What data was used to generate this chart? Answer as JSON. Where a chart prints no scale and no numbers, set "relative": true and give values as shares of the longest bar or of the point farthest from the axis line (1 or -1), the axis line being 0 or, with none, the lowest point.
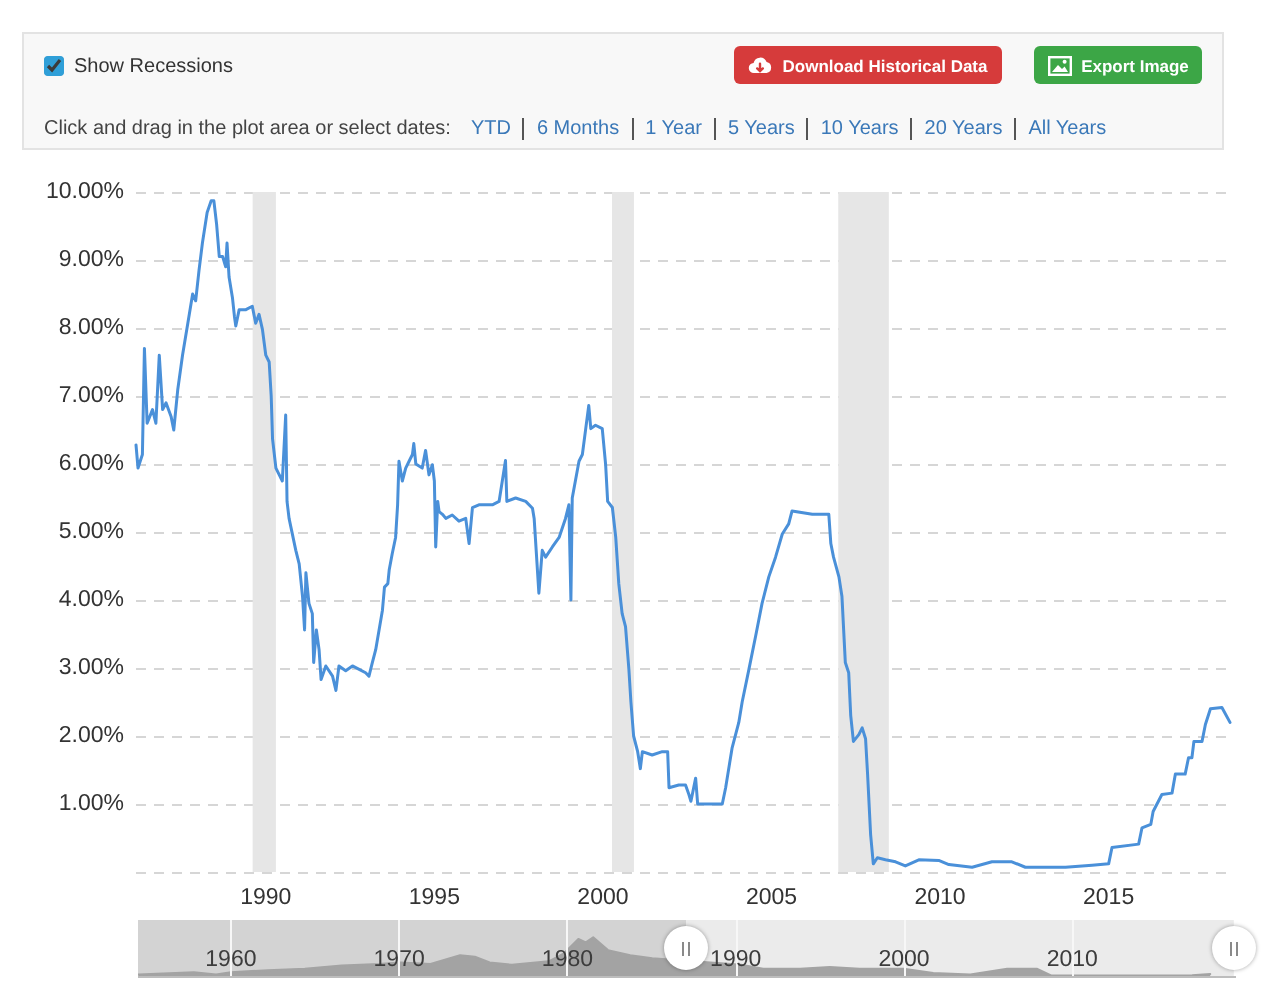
{
  "chart_data": [
    {
      "type": "line",
      "annotations": [
        "Show Recessions",
        "Download Historical Data",
        "Export Image",
        "Click and drag in the plot area or select dates:",
        "YTD",
        "6 Months",
        "1 Year",
        "5 Years",
        "10 Years",
        "20 Years",
        "All Years"
      ],
      "x": [
        1986.15,
        1986.21,
        1986.34,
        1986.4,
        1986.48,
        1986.64,
        1986.74,
        1986.84,
        1986.94,
        1987.04,
        1987.19,
        1987.27,
        1987.39,
        1987.53,
        1987.73,
        1987.83,
        1987.92,
        1988.02,
        1988.12,
        1988.26,
        1988.38,
        1988.46,
        1988.54,
        1988.62,
        1988.72,
        1988.81,
        1988.85,
        1988.91,
        1989.01,
        1989.07,
        1989.11,
        1989.21,
        1989.41,
        1989.6,
        1989.7,
        1989.8,
        1989.9,
        1990.0,
        1990.1,
        1990.16,
        1990.2,
        1990.3,
        1990.4,
        1990.49,
        1990.59,
        1990.63,
        1990.69,
        1990.89,
        1990.99,
        1991.09,
        1991.15,
        1991.19,
        1991.28,
        1991.38,
        1991.42,
        1991.5,
        1991.58,
        1991.64,
        1991.78,
        1991.98,
        1992.08,
        1992.17,
        1992.37,
        1992.57,
        1992.77,
        1992.96,
        1993.06,
        1993.16,
        1993.26,
        1993.36,
        1993.46,
        1993.52,
        1993.62,
        1993.66,
        1993.75,
        1993.85,
        1993.91,
        1993.95,
        1994.05,
        1994.15,
        1994.25,
        1994.35,
        1994.39,
        1994.45,
        1994.64,
        1994.74,
        1994.84,
        1994.94,
        1995.0,
        1995.04,
        1995.1,
        1995.14,
        1995.24,
        1995.34,
        1995.53,
        1995.73,
        1995.93,
        1996.03,
        1996.13,
        1996.32,
        1996.72,
        1996.92,
        1997.11,
        1997.15,
        1997.41,
        1997.71,
        1997.91,
        1997.96,
        1998.02,
        1998.1,
        1998.2,
        1998.3,
        1998.5,
        1998.7,
        1998.89,
        1998.99,
        1999.05,
        1999.09,
        1999.29,
        1999.39,
        1999.49,
        1999.58,
        1999.64,
        1999.78,
        1999.98,
        2000.08,
        2000.14,
        2000.28,
        2000.38,
        2000.47,
        2000.57,
        2000.67,
        2000.77,
        2000.83,
        2000.91,
        2001.03,
        2001.11,
        2001.17,
        2001.46,
        2001.76,
        2001.92,
        2001.96,
        2002.25,
        2002.45,
        2002.55,
        2002.61,
        2002.75,
        2002.81,
        2003.54,
        2003.64,
        2003.83,
        2004.03,
        2004.13,
        2004.33,
        2004.53,
        2004.72,
        2004.92,
        2005.12,
        2005.32,
        2005.51,
        2005.61,
        2006.21,
        2006.7,
        2006.76,
        2006.84,
        2007.0,
        2007.09,
        2007.19,
        2007.29,
        2007.35,
        2007.43,
        2007.59,
        2007.69,
        2007.79,
        2007.85,
        2007.94,
        2008.02,
        2008.14,
        2008.38,
        2008.68,
        2008.97,
        2009.37,
        2009.96,
        2010.26,
        2010.95,
        2011.54,
        2012.13,
        2012.53,
        2013.72,
        2014.51,
        2015.0,
        2015.1,
        2015.89,
        2015.99,
        2016.25,
        2016.32,
        2016.58,
        2016.88,
        2016.98,
        2017.27,
        2017.37,
        2017.47,
        2017.53,
        2017.77,
        2017.87,
        2018.02,
        2018.36,
        2018.6
      ],
      "values": [
        6.28,
        5.94,
        6.14,
        7.7,
        6.6,
        6.8,
        6.6,
        7.6,
        6.8,
        6.9,
        6.7,
        6.5,
        7.1,
        7.6,
        8.2,
        8.5,
        8.4,
        8.85,
        9.25,
        9.7,
        9.87,
        9.87,
        9.53,
        9.05,
        9.05,
        8.9,
        9.25,
        8.75,
        8.45,
        8.17,
        8.03,
        8.27,
        8.27,
        8.32,
        8.07,
        8.2,
        7.98,
        7.6,
        7.5,
        7.0,
        6.37,
        5.94,
        5.84,
        5.75,
        6.72,
        5.45,
        5.2,
        4.73,
        4.53,
        4.05,
        3.56,
        4.4,
        3.95,
        3.8,
        3.08,
        3.56,
        3.27,
        2.83,
        3.03,
        2.88,
        2.67,
        3.03,
        2.96,
        3.03,
        2.98,
        2.93,
        2.88,
        3.08,
        3.27,
        3.56,
        3.85,
        4.19,
        4.24,
        4.44,
        4.68,
        4.92,
        5.4,
        6.04,
        5.75,
        5.94,
        6.04,
        6.14,
        6.3,
        6.0,
        5.94,
        6.2,
        5.84,
        5.99,
        5.75,
        4.78,
        5.45,
        5.3,
        5.26,
        5.2,
        5.25,
        5.16,
        5.2,
        4.83,
        5.36,
        5.4,
        5.4,
        5.45,
        6.05,
        5.45,
        5.5,
        5.45,
        5.35,
        5.2,
        4.73,
        4.1,
        4.73,
        4.63,
        4.78,
        4.92,
        5.2,
        5.4,
        4.0,
        5.5,
        6.04,
        6.14,
        6.52,
        6.86,
        6.52,
        6.57,
        6.52,
        5.99,
        5.45,
        5.36,
        4.92,
        4.24,
        3.8,
        3.61,
        2.98,
        2.5,
        2.0,
        1.77,
        1.52,
        1.77,
        1.72,
        1.77,
        1.77,
        1.24,
        1.28,
        1.28,
        1.14,
        1.04,
        1.38,
        1.0,
        1.0,
        1.24,
        1.82,
        2.2,
        2.5,
        2.98,
        3.47,
        3.95,
        4.34,
        4.63,
        4.97,
        5.12,
        5.31,
        5.26,
        5.26,
        4.83,
        4.63,
        4.34,
        4.05,
        3.08,
        2.93,
        2.3,
        1.92,
        2.02,
        2.12,
        1.96,
        1.44,
        0.55,
        0.12,
        0.21,
        0.18,
        0.15,
        0.09,
        0.18,
        0.17,
        0.11,
        0.07,
        0.15,
        0.15,
        0.07,
        0.07,
        0.1,
        0.12,
        0.36,
        0.41,
        0.65,
        0.7,
        0.89,
        1.14,
        1.16,
        1.44,
        1.44,
        1.68,
        1.68,
        1.92,
        1.92,
        2.17,
        2.4,
        2.42,
        2.2
      ],
      "color": "#4a90d9",
      "xlim": [
        1986.15,
        2018.6
      ],
      "xticks": [
        1990,
        1995,
        2000,
        2005,
        2010,
        2015
      ],
      "ylim": [
        0,
        10
      ],
      "yticks": [
        {
          "value": 0,
          "label": null
        },
        {
          "value": 1,
          "label": "1.00%"
        },
        {
          "value": 2,
          "label": "2.00%"
        },
        {
          "value": 3,
          "label": "3.00%"
        },
        {
          "value": 4,
          "label": "4.00%"
        },
        {
          "value": 5,
          "label": "5.00%"
        },
        {
          "value": 6,
          "label": "6.00%"
        },
        {
          "value": 7,
          "label": "7.00%"
        },
        {
          "value": 8,
          "label": "8.00%"
        },
        {
          "value": 9,
          "label": "9.00%"
        },
        {
          "value": 10,
          "label": "10.00%"
        }
      ],
      "grid": "y",
      "bands": [
        {
          "axis": "x",
          "from": 1989.61,
          "to": 1990.3,
          "color": "#e6e6e6"
        },
        {
          "axis": "x",
          "from": 2000.27,
          "to": 2000.92,
          "color": "#e6e6e6"
        },
        {
          "axis": "x",
          "from": 2006.98,
          "to": 2008.48,
          "color": "#e6e6e6"
        }
      ]
    },
    {
      "type": "area",
      "relative": true,
      "x": [
        1954.51,
        1957.8,
        1959.12,
        1960.0,
        1962.2,
        1964.39,
        1966.59,
        1968.79,
        1970.11,
        1971.86,
        1973.62,
        1974.5,
        1975.38,
        1976.7,
        1978.89,
        1979.77,
        1980.65,
        1981.09,
        1981.53,
        1982.41,
        1983.73,
        1985.04,
        1990.32,
        1991.63,
        1993.83,
        1995.59,
        1997.35,
        1999.98,
        2001.74,
        2003.94,
        2006.13,
        2007.89,
        2008.77,
        2017.12,
        2018.2
      ],
      "values": [
        0.04,
        0.1,
        0.04,
        0.1,
        0.15,
        0.19,
        0.27,
        0.31,
        0.35,
        0.31,
        0.54,
        0.5,
        0.35,
        0.29,
        0.38,
        0.58,
        0.96,
        0.87,
        1.0,
        0.67,
        0.54,
        0.46,
        0.29,
        0.19,
        0.19,
        0.23,
        0.19,
        0.19,
        0.08,
        0.04,
        0.19,
        0.19,
        0.01,
        0.02,
        0.05
      ],
      "color": "#a3a3a3",
      "xlim": [
        1954.48,
        2019.73
      ],
      "xticks": [
        1960,
        1970,
        1980,
        1990,
        2000,
        2010
      ],
      "grid": "x",
      "bands": [
        {
          "axis": "x",
          "from": 1954.48,
          "to": 1987.07,
          "color": "#d3d3d3"
        },
        {
          "axis": "x",
          "from": 1987.07,
          "to": 2019.6,
          "color": "#ebebeb"
        }
      ]
    }
  ]
}
